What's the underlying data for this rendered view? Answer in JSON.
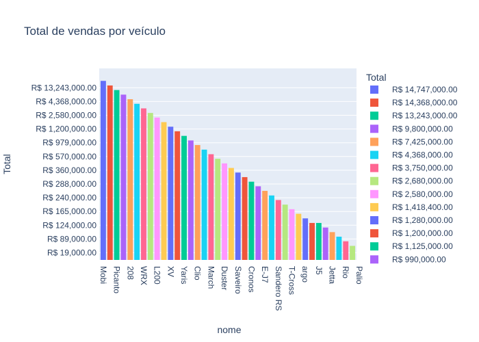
{
  "chart_data": {
    "type": "bar",
    "title": "Total de vendas por veículo",
    "xlabel": "nome",
    "ylabel": "Total",
    "legend_title": "Total",
    "legend_placement": "right",
    "grid": true,
    "categories": [
      "Mobi",
      "Picanto",
      "208",
      "WRX",
      "L200",
      "XV",
      "Yaris",
      "Clio",
      "March",
      "Duster",
      "Saveiro",
      "Cronos",
      "E-J7",
      "Sandero RS",
      "T-Cross",
      "argo",
      "J5",
      "Jetta",
      "Rio",
      "Palio"
    ],
    "y_tick_labels": [
      "R$ 19,000.00",
      "R$ 89,000.00",
      "R$ 124,000.00",
      "R$ 165,000.00",
      "R$ 240,000.00",
      "R$ 288,000.00",
      "R$ 360,000.00",
      "R$ 570,000.00",
      "R$ 979,000.00",
      "R$ 1,200,000.00",
      "R$ 2,580,000.00",
      "R$ 4,368,000.00",
      "R$ 13,243,000.00"
    ],
    "bar_ranks": [
      37.5,
      36.5,
      35.5,
      34.5,
      33.5,
      32.5,
      31.5,
      30.5,
      29.5,
      28.5,
      27.5,
      26.5,
      25.5,
      24.5,
      23.5,
      22.5,
      21.5,
      20.5,
      19.5,
      18.5,
      17.5,
      16.5,
      15.5,
      14.5,
      13.5,
      12.5,
      11.5,
      10.5,
      9.5,
      8.5,
      7.5,
      6.5,
      6.5,
      5.5,
      4.5,
      3.5,
      2.5,
      1.5
    ],
    "legend_values": [
      "R$ 14,747,000.00",
      "R$ 14,368,000.00",
      "R$ 13,243,000.00",
      "R$ 9,800,000.00",
      "R$ 7,425,000.00",
      "R$ 4,368,000.00",
      "R$ 3,750,000.00",
      "R$ 2,680,000.00",
      "R$ 2,580,000.00",
      "R$ 1,418,400.00",
      "R$ 1,280,000.00",
      "R$ 1,200,000.00",
      "R$ 1,125,000.00",
      "R$ 990,000.00"
    ],
    "colors": [
      "#636efa",
      "#EF553B",
      "#00cc96",
      "#ab63fa",
      "#FFA15A",
      "#19d3f3",
      "#FF6692",
      "#B6E880",
      "#FF97FF",
      "#FECB52"
    ],
    "plot_bg": "#E5ECF6"
  }
}
